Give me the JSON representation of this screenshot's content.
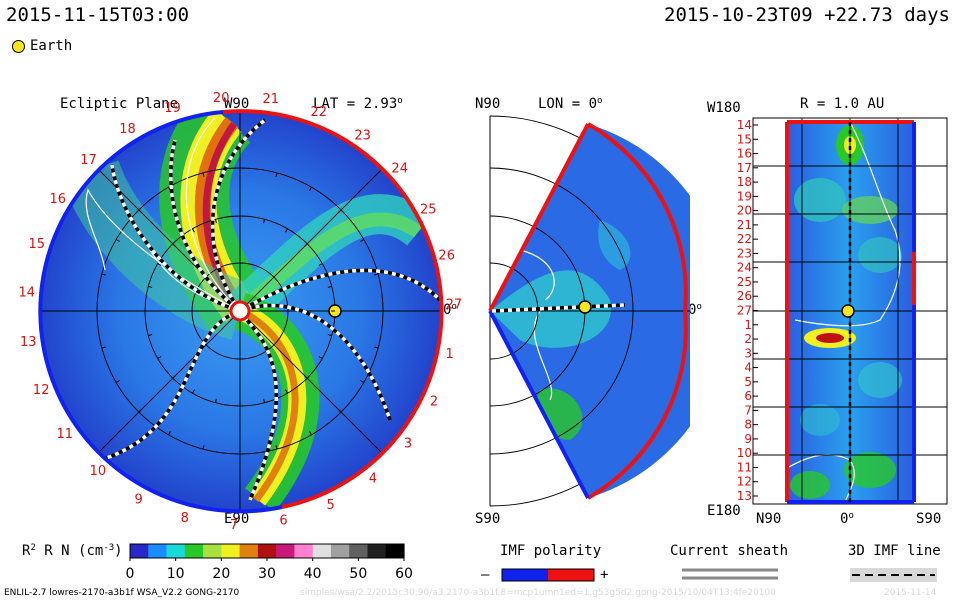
{
  "header": {
    "run_time": "2015-11-15T03:00",
    "model_time": "2015-10-23T09 +22.73 days",
    "earth_legend": "Earth"
  },
  "ecliptic_panel": {
    "title": "Ecliptic Plane",
    "lat_label": "LAT = 2.93",
    "top_label": "W90",
    "bottom_label": "E90",
    "right_label": "0",
    "day_numbers_ccw_from_27": [
      "27",
      "26",
      "25",
      "24",
      "23",
      "22",
      "21",
      "20",
      "19",
      "18",
      "17",
      "16",
      "15",
      "14",
      "13",
      "12",
      "11",
      "10",
      "9",
      "8",
      "7",
      "6",
      "5",
      "4",
      "3",
      "2",
      "1"
    ]
  },
  "meridional_panel": {
    "top_label": "N90",
    "lon_label": "LON = 0",
    "bottom_label": "S90",
    "right_label": "0"
  },
  "map_panel": {
    "title": "R = 1.0 AU",
    "top_left_label": "W180",
    "bottom_left_label": "E180",
    "bottom_axis": [
      "N90",
      "0",
      "S90"
    ],
    "rows": [
      "14",
      "15",
      "16",
      "17",
      "18",
      "19",
      "20",
      "21",
      "22",
      "23",
      "24",
      "25",
      "26",
      "27",
      "1",
      "2",
      "3",
      "4",
      "5",
      "6",
      "7",
      "8",
      "9",
      "10",
      "11",
      "12",
      "13"
    ]
  },
  "colorbar": {
    "label": "R N (cm",
    "label_tail": ")",
    "ticks": [
      "0",
      "10",
      "20",
      "30",
      "40",
      "50",
      "60"
    ],
    "colors": [
      "#2828c8",
      "#1a8cff",
      "#18d8d8",
      "#28c828",
      "#a8e040",
      "#f0f020",
      "#e08010",
      "#b01010",
      "#c81878",
      "#ff80d0",
      "#e0e0e0",
      "#a0a0a0",
      "#606060",
      "#202020",
      "#000000"
    ]
  },
  "legends": {
    "imf_title": "IMF polarity",
    "imf_minus": "–",
    "imf_plus": "+",
    "sheath_title": "Current sheath",
    "imf3d_title": "3D IMF line",
    "pos_color": "#ee1111",
    "neg_color": "#1122ee"
  },
  "footer": {
    "version_line": "ENLIL-2.7 lowres-2170-a3b1f WSA_V2.2 GONG-2170",
    "faint_path": "simples/wsa/2.2/2015c30:90/a3.2170-a3b1f.8=mcp1umn1ed=1.g53g5d2.gong-2015/10/04T13:4fe20100",
    "faint_date": "2015-11-14"
  },
  "chart_data": [
    {
      "type": "heatmap",
      "title": "Ecliptic Plane",
      "quantity": "R² N (cm⁻³)",
      "range": [
        0,
        60
      ],
      "earth_longitude_deg": 0,
      "earth_radius_au": 1.0
    },
    {
      "type": "heatmap",
      "title": "LON = 0",
      "quantity": "R² N (cm⁻³)",
      "latitude_range": [
        "S90",
        "N90"
      ]
    },
    {
      "type": "heatmap",
      "title": "R = 1.0 AU",
      "quantity": "R² N (cm⁻³)",
      "x_axis": [
        "N90",
        "0",
        "S90"
      ],
      "y_axis_days": [
        "14",
        "15",
        "16",
        "17",
        "18",
        "19",
        "20",
        "21",
        "22",
        "23",
        "24",
        "25",
        "26",
        "27",
        "1",
        "2",
        "3",
        "4",
        "5",
        "6",
        "7",
        "8",
        "9",
        "10",
        "11",
        "12",
        "13"
      ]
    }
  ]
}
